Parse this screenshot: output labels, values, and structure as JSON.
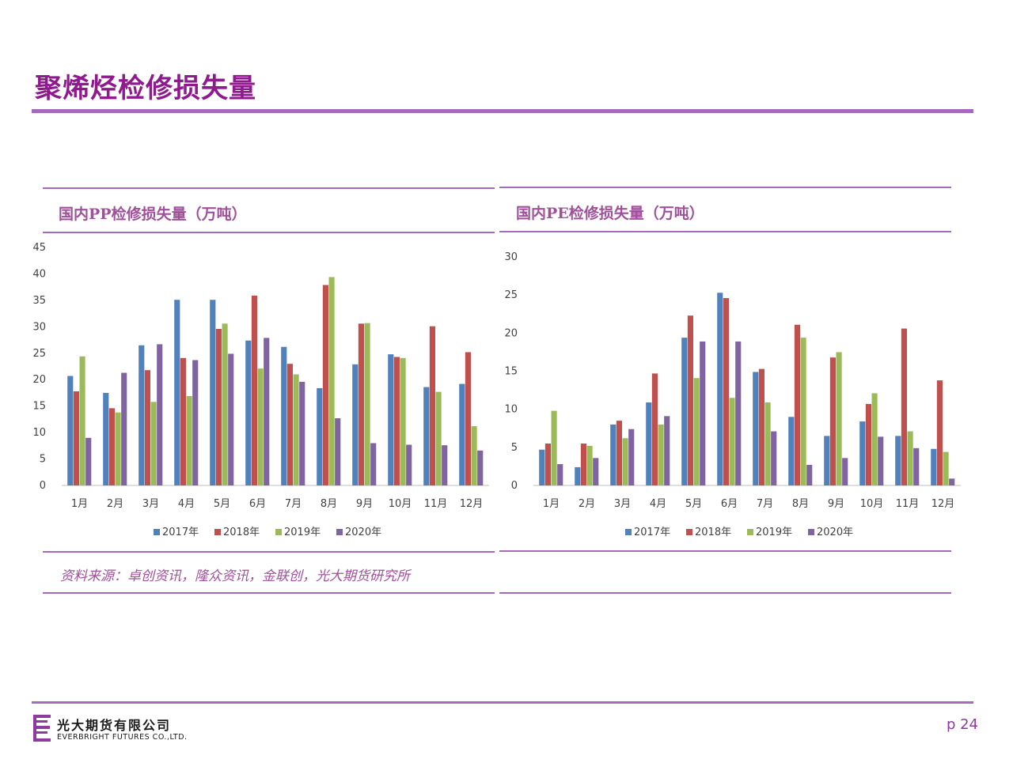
{
  "page": {
    "title": "聚烯烃检修损失量",
    "source": "资料来源：卓创资讯，隆众资讯，金联创，光大期货研究所",
    "page_number": "p 24"
  },
  "footer": {
    "company_cn": "光大期货有限公司",
    "company_en": "EVERBRIGHT FUTURES CO.,LTD."
  },
  "colors": {
    "accent": "#a569bd",
    "title": "#8e1a8e",
    "s2017": "#4f81bd",
    "s2018": "#c0504d",
    "s2019": "#9bbb59",
    "s2020": "#8064a2"
  },
  "chart_data": [
    {
      "type": "bar",
      "title": "国内PP检修损失量（万吨）",
      "categories": [
        "1月",
        "2月",
        "3月",
        "4月",
        "5月",
        "6月",
        "7月",
        "8月",
        "9月",
        "10月",
        "11月",
        "12月"
      ],
      "ylim": [
        0,
        45
      ],
      "yticks": [
        0,
        5,
        10,
        15,
        20,
        25,
        30,
        35,
        40,
        45
      ],
      "legend": "bottom",
      "grid": false,
      "series": [
        {
          "name": "2017年",
          "color": "#4f81bd",
          "values": [
            20.7,
            17.5,
            26.5,
            35.1,
            35.1,
            27.4,
            26.2,
            18.4,
            22.9,
            24.8,
            18.6,
            19.2
          ]
        },
        {
          "name": "2018年",
          "color": "#c0504d",
          "values": [
            17.8,
            14.6,
            21.8,
            24.1,
            29.6,
            35.9,
            23.0,
            37.9,
            30.6,
            24.3,
            30.1,
            25.2
          ]
        },
        {
          "name": "2019年",
          "color": "#9bbb59",
          "values": [
            24.4,
            13.8,
            15.8,
            16.9,
            30.6,
            22.1,
            21.0,
            39.4,
            30.7,
            24.1,
            17.7,
            11.2
          ]
        },
        {
          "name": "2020年",
          "color": "#8064a2",
          "values": [
            9.0,
            21.3,
            26.7,
            23.7,
            24.9,
            27.9,
            19.6,
            12.7,
            8.0,
            7.7,
            7.6,
            6.6
          ]
        }
      ]
    },
    {
      "type": "bar",
      "title": "国内PE检修损失量（万吨）",
      "categories": [
        "1月",
        "2月",
        "3月",
        "4月",
        "5月",
        "6月",
        "7月",
        "8月",
        "9月",
        "10月",
        "11月",
        "12月"
      ],
      "ylim": [
        0,
        30
      ],
      "yticks": [
        0,
        5,
        10,
        15,
        20,
        25,
        30
      ],
      "legend": "bottom",
      "grid": false,
      "series": [
        {
          "name": "2017年",
          "color": "#4f81bd",
          "values": [
            4.7,
            2.4,
            8.0,
            10.9,
            19.4,
            25.3,
            14.9,
            9.0,
            6.5,
            8.4,
            6.5,
            4.8
          ]
        },
        {
          "name": "2018年",
          "color": "#c0504d",
          "values": [
            5.5,
            5.5,
            8.5,
            14.7,
            22.3,
            24.6,
            15.3,
            21.1,
            16.8,
            10.7,
            20.6,
            13.8
          ]
        },
        {
          "name": "2019年",
          "color": "#9bbb59",
          "values": [
            9.8,
            5.2,
            6.2,
            8.0,
            14.1,
            11.5,
            10.9,
            19.4,
            17.5,
            12.1,
            7.1,
            4.4
          ]
        },
        {
          "name": "2020年",
          "color": "#8064a2",
          "values": [
            2.8,
            3.6,
            7.4,
            9.1,
            18.9,
            18.9,
            7.1,
            2.7,
            3.6,
            6.4,
            4.9,
            0.9
          ]
        }
      ]
    }
  ]
}
